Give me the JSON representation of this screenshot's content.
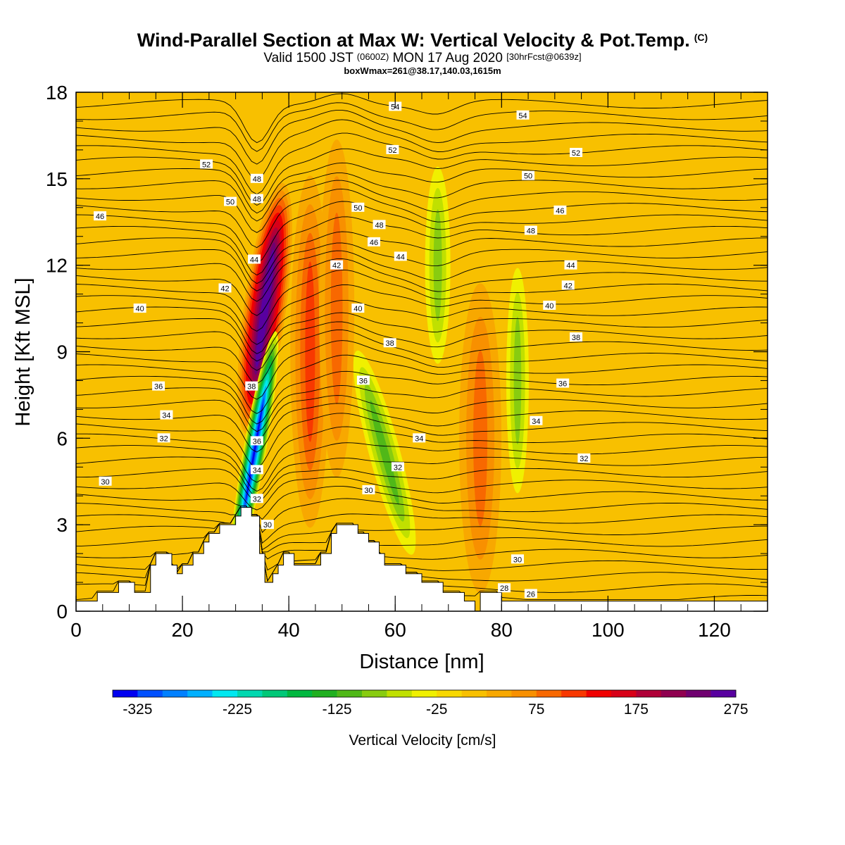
{
  "title": {
    "main": "Wind-Parallel Section at Max W: Vertical Velocity & Pot.Temp.",
    "mark": "(C)",
    "valid_prefix": "Valid 1500 JST",
    "valid_z": "(0600Z)",
    "valid_date": "MON 17 Aug 2020",
    "fcst": "[30hrFcst@0639z]",
    "box": "boxWmax=261@38.17,140.03,1615m"
  },
  "chart_data": {
    "type": "heatmap",
    "xlabel": "Distance [nm]",
    "ylabel": "Height [Kft MSL]",
    "xlim": [
      0,
      130
    ],
    "ylim": [
      0,
      18
    ],
    "xticks": [
      "0",
      "20",
      "40",
      "60",
      "80",
      "100",
      "120"
    ],
    "yticks": [
      "0",
      "3",
      "6",
      "9",
      "12",
      "15",
      "18"
    ],
    "colorbar": {
      "title": "Vertical Velocity [cm/s]",
      "labels": [
        "-325",
        "-225",
        "-125",
        "-25",
        "75",
        "175",
        "275"
      ],
      "min": -350,
      "step": 25,
      "colors": [
        "#0000f0",
        "#0050ff",
        "#0080ff",
        "#00b0ff",
        "#00e8f0",
        "#00d8b0",
        "#00c878",
        "#00b840",
        "#20b020",
        "#50b818",
        "#88cc10",
        "#c0e000",
        "#f0f000",
        "#f8d800",
        "#f8c000",
        "#f8a800",
        "#f89000",
        "#f86800",
        "#f83800",
        "#f00000",
        "#d80018",
        "#b00038",
        "#900050",
        "#700070",
        "#5800a0"
      ]
    },
    "background_w": 0,
    "vertical_velocity_features": [
      {
        "x": 35.5,
        "y": 10.5,
        "w": 275,
        "kind": "updraft core"
      },
      {
        "x": 33.5,
        "y": 5.5,
        "w": -325,
        "kind": "downdraft core"
      },
      {
        "x": 44,
        "y": 9,
        "w": 100,
        "kind": "updraft"
      },
      {
        "x": 49,
        "y": 10.5,
        "w": 75,
        "kind": "updraft"
      },
      {
        "x": 58,
        "y": 5.5,
        "w": -100,
        "kind": "downdraft"
      },
      {
        "x": 68,
        "y": 12,
        "w": -75,
        "kind": "downdraft"
      },
      {
        "x": 76,
        "y": 6,
        "w": 75,
        "kind": "updraft"
      },
      {
        "x": 83,
        "y": 8,
        "w": -75,
        "kind": "downdraft"
      }
    ],
    "terrain_top_kft": [
      [
        0,
        0.35
      ],
      [
        4,
        0.35
      ],
      [
        4,
        0.65
      ],
      [
        8,
        0.65
      ],
      [
        8,
        1.0
      ],
      [
        11,
        1.0
      ],
      [
        11,
        0.65
      ],
      [
        14,
        0.65
      ],
      [
        14,
        1.6
      ],
      [
        15,
        1.6
      ],
      [
        15,
        2.0
      ],
      [
        18,
        2.0
      ],
      [
        18,
        1.6
      ],
      [
        19,
        1.6
      ],
      [
        19,
        1.3
      ],
      [
        20,
        1.3
      ],
      [
        20,
        1.6
      ],
      [
        22,
        1.6
      ],
      [
        22,
        2.0
      ],
      [
        24,
        2.0
      ],
      [
        24,
        2.4
      ],
      [
        25,
        2.4
      ],
      [
        25,
        2.7
      ],
      [
        27,
        2.7
      ],
      [
        27,
        3.0
      ],
      [
        30,
        3.0
      ],
      [
        30,
        3.3
      ],
      [
        31,
        3.3
      ],
      [
        31,
        3.6
      ],
      [
        33,
        3.6
      ],
      [
        33,
        3.3
      ],
      [
        34.5,
        3.3
      ],
      [
        34.5,
        2.0
      ],
      [
        35.5,
        2.0
      ],
      [
        35.5,
        1.0
      ],
      [
        37,
        1.0
      ],
      [
        37,
        1.3
      ],
      [
        38,
        1.3
      ],
      [
        38,
        1.6
      ],
      [
        39,
        1.6
      ],
      [
        39,
        2.0
      ],
      [
        41,
        2.0
      ],
      [
        41,
        1.6
      ],
      [
        46,
        1.6
      ],
      [
        46,
        2.0
      ],
      [
        48,
        2.0
      ],
      [
        48,
        2.7
      ],
      [
        49,
        2.7
      ],
      [
        49,
        3.0
      ],
      [
        53,
        3.0
      ],
      [
        53,
        2.7
      ],
      [
        55,
        2.7
      ],
      [
        55,
        2.4
      ],
      [
        57,
        2.4
      ],
      [
        57,
        2.0
      ],
      [
        58,
        2.0
      ],
      [
        58,
        1.6
      ],
      [
        62,
        1.6
      ],
      [
        62,
        1.3
      ],
      [
        65,
        1.3
      ],
      [
        65,
        1.0
      ],
      [
        69,
        1.0
      ],
      [
        69,
        0.65
      ],
      [
        73,
        0.65
      ],
      [
        73,
        0.35
      ],
      [
        75,
        0.35
      ],
      [
        75,
        0.0
      ],
      [
        76,
        0.0
      ],
      [
        76,
        0.65
      ],
      [
        80,
        0.65
      ],
      [
        80,
        0.35
      ],
      [
        130,
        0.35
      ]
    ],
    "potential_temperature_labels": [
      {
        "text": "30",
        "x": 5.5,
        "y": 4.5
      },
      {
        "text": "32",
        "x": 16.5,
        "y": 6.0
      },
      {
        "text": "34",
        "x": 17,
        "y": 6.8
      },
      {
        "text": "36",
        "x": 15.5,
        "y": 7.8
      },
      {
        "text": "40",
        "x": 12,
        "y": 10.5
      },
      {
        "text": "42",
        "x": 28,
        "y": 11.2
      },
      {
        "text": "46",
        "x": 4.5,
        "y": 13.7
      },
      {
        "text": "50",
        "x": 29,
        "y": 14.2
      },
      {
        "text": "52",
        "x": 24.5,
        "y": 15.5
      },
      {
        "text": "48",
        "x": 34,
        "y": 15.0
      },
      {
        "text": "48",
        "x": 34,
        "y": 14.3
      },
      {
        "text": "44",
        "x": 33.5,
        "y": 12.2
      },
      {
        "text": "38",
        "x": 33,
        "y": 7.8
      },
      {
        "text": "36",
        "x": 34,
        "y": 5.9
      },
      {
        "text": "34",
        "x": 34,
        "y": 4.9
      },
      {
        "text": "32",
        "x": 34,
        "y": 3.9
      },
      {
        "text": "30",
        "x": 36,
        "y": 3.0
      },
      {
        "text": "54",
        "x": 60,
        "y": 17.5
      },
      {
        "text": "52",
        "x": 59.5,
        "y": 16.0
      },
      {
        "text": "50",
        "x": 53,
        "y": 14.0
      },
      {
        "text": "48",
        "x": 57,
        "y": 13.4
      },
      {
        "text": "46",
        "x": 56,
        "y": 12.8
      },
      {
        "text": "44",
        "x": 61,
        "y": 12.3
      },
      {
        "text": "42",
        "x": 49,
        "y": 12.0
      },
      {
        "text": "40",
        "x": 53,
        "y": 10.5
      },
      {
        "text": "38",
        "x": 59,
        "y": 9.3
      },
      {
        "text": "36",
        "x": 54,
        "y": 8.0
      },
      {
        "text": "34",
        "x": 64.5,
        "y": 6.0
      },
      {
        "text": "32",
        "x": 60.5,
        "y": 5.0
      },
      {
        "text": "30",
        "x": 55,
        "y": 4.2
      },
      {
        "text": "54",
        "x": 84,
        "y": 17.2
      },
      {
        "text": "52",
        "x": 94,
        "y": 15.9
      },
      {
        "text": "50",
        "x": 85,
        "y": 15.1
      },
      {
        "text": "46",
        "x": 91,
        "y": 13.9
      },
      {
        "text": "48",
        "x": 85.5,
        "y": 13.2
      },
      {
        "text": "44",
        "x": 93,
        "y": 12.0
      },
      {
        "text": "42",
        "x": 92.5,
        "y": 11.3
      },
      {
        "text": "40",
        "x": 89,
        "y": 10.6
      },
      {
        "text": "38",
        "x": 94,
        "y": 9.5
      },
      {
        "text": "36",
        "x": 91.5,
        "y": 7.9
      },
      {
        "text": "34",
        "x": 86.5,
        "y": 6.6
      },
      {
        "text": "32",
        "x": 95.5,
        "y": 5.3
      },
      {
        "text": "30",
        "x": 83,
        "y": 1.8
      },
      {
        "text": "28",
        "x": 80.5,
        "y": 0.8
      },
      {
        "text": "26",
        "x": 85.5,
        "y": 0.6
      }
    ]
  }
}
